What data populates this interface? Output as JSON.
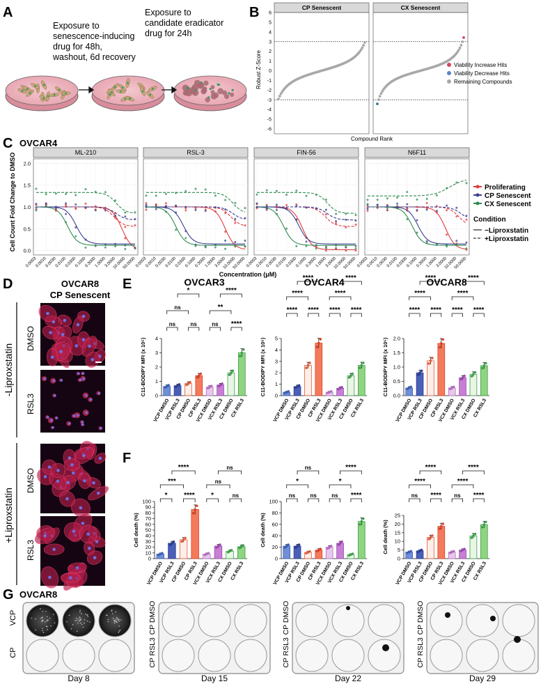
{
  "panel_letters": {
    "A": "A",
    "B": "B",
    "C": "C",
    "D": "D",
    "E": "E",
    "F": "F",
    "G": "G"
  },
  "panel_a": {
    "step1": [
      "Exposure to",
      "senescence-inducing",
      "drug for 48h,",
      "washout, 6d recovery"
    ],
    "step2": [
      "Exposure to",
      "candidate eradicator",
      "drug for 24h"
    ]
  },
  "panel_b": {
    "facets": [
      "CP Senescent",
      "CX Senescent"
    ],
    "ylabel": "Robust Z-Score",
    "xlabel": "Compound Rank",
    "yticks": [
      "6",
      "5",
      "4",
      "3",
      "2",
      "1",
      "0",
      "-1",
      "-2",
      "-3",
      "-4",
      "-5",
      "-6"
    ],
    "legend": [
      {
        "label": "Viability Increase Hits",
        "color": "#d6455a"
      },
      {
        "label": "Viability Decrease Hits",
        "color": "#5a86c6"
      },
      {
        "label": "Remaining Compounds",
        "color": "#a8a8a8"
      }
    ]
  },
  "panel_c": {
    "title": "OVCAR4",
    "facets": [
      "ML-210",
      "RSL-3",
      "FIN-56",
      "N6F11"
    ],
    "ylabel": "Cell Count Fold Change to DMSO",
    "xlabel": "Concentration (μM)",
    "yticks": [
      "0.0",
      "0.5",
      "1.0",
      "1.5",
      "2.0"
    ],
    "xticks": [
      "0.0003",
      "0.0010",
      "0.0030",
      "0.0100",
      "0.0300",
      "0.1000",
      "0.3000",
      "1.0000",
      "3.0000",
      "10.0000",
      "50.0000"
    ],
    "legend_series": [
      {
        "label": "Proliferating",
        "color": "#e0393e"
      },
      {
        "label": "CP Senescent",
        "color": "#3a3f8f"
      },
      {
        "label": "CX Senescent",
        "color": "#2e8b4f"
      }
    ],
    "condition_title": "Condition",
    "condition": [
      "−Liproxstatin",
      "+Liproxstatin"
    ]
  },
  "panel_d": {
    "title": [
      "OVCAR8",
      "CP Senescent"
    ],
    "groups": [
      "-Liproxstatin",
      "+Liproxstatin"
    ],
    "rows": [
      "DMSO",
      "RSL3",
      "DMSO",
      "RSL3"
    ]
  },
  "bar_categories": [
    "VCP DMSO",
    "VCP RSL3",
    "CP DMSO",
    "CP RSL3",
    "VCX DMSO",
    "VCX RSL3",
    "CX DMSO",
    "CX RSL3"
  ],
  "bar_colors": {
    "fill": [
      "#6f8fd6",
      "#4a5fb8",
      "#fdeee8",
      "#f47a5c",
      "#e8c7ea",
      "#c77fd4",
      "#e9f6e4",
      "#8fd480"
    ],
    "stroke": [
      "#3d5fb5",
      "#2d3d8f",
      "#e05a3a",
      "#d9432a",
      "#b36cc0",
      "#9a4ab0",
      "#3ba04a",
      "#3ba04a"
    ]
  },
  "panel_e": {
    "ylabel": "C11-BODIPY MFI (x 10⁵)",
    "charts": [
      {
        "title": "OVCAR3",
        "ymax": 4,
        "yticks": [
          "0",
          "1",
          "2",
          "3",
          "4"
        ],
        "values": [
          0.65,
          0.7,
          0.85,
          1.4,
          0.6,
          0.75,
          1.6,
          3.0
        ]
      },
      {
        "title": "OVCAR4",
        "ymax": 5,
        "yticks": [
          "0",
          "1",
          "2",
          "3",
          "4",
          "5"
        ],
        "values": [
          0.3,
          0.8,
          2.65,
          4.6,
          0.3,
          0.65,
          1.75,
          2.65
        ]
      },
      {
        "title": "OVCAR8",
        "ymax": 2.0,
        "yticks": [
          "0.0",
          "0.5",
          "1.0",
          "1.5",
          "2.0"
        ],
        "values": [
          0.27,
          0.8,
          1.22,
          1.83,
          0.27,
          0.63,
          0.75,
          1.05
        ]
      }
    ]
  },
  "panel_f": {
    "ylabel": "Cell death (%)",
    "charts": [
      {
        "ymax": 100,
        "yticks": [
          "0",
          "10",
          "20",
          "30",
          "40",
          "50",
          "60",
          "70",
          "80",
          "90",
          "100"
        ],
        "values": [
          8,
          27,
          33,
          86,
          8,
          22,
          13,
          21
        ]
      },
      {
        "ymax": 100,
        "yticks": [
          "0",
          "20",
          "40",
          "60",
          "80",
          "100"
        ],
        "values": [
          22,
          22,
          11,
          15,
          20,
          27,
          7,
          65
        ]
      },
      {
        "ymax": 25,
        "yticks": [
          "0",
          "5",
          "10",
          "15",
          "20",
          "25"
        ],
        "values": [
          3.8,
          4.5,
          12.3,
          18.7,
          3.8,
          5,
          13.2,
          19.7
        ]
      }
    ]
  },
  "panel_g": {
    "title": "OVCAR8",
    "rows": [
      "VCP",
      "CP"
    ],
    "plates": [
      {
        "day": "Day 8",
        "side": []
      },
      {
        "day": "Day 15",
        "side": [
          "CP DMSO",
          "CP RSL3"
        ]
      },
      {
        "day": "Day 22",
        "side": [
          "CP DMSO",
          "CP RSL3"
        ]
      },
      {
        "day": "Day 29",
        "side": [
          "CP DMSO",
          "CP RSL3"
        ]
      }
    ]
  }
}
